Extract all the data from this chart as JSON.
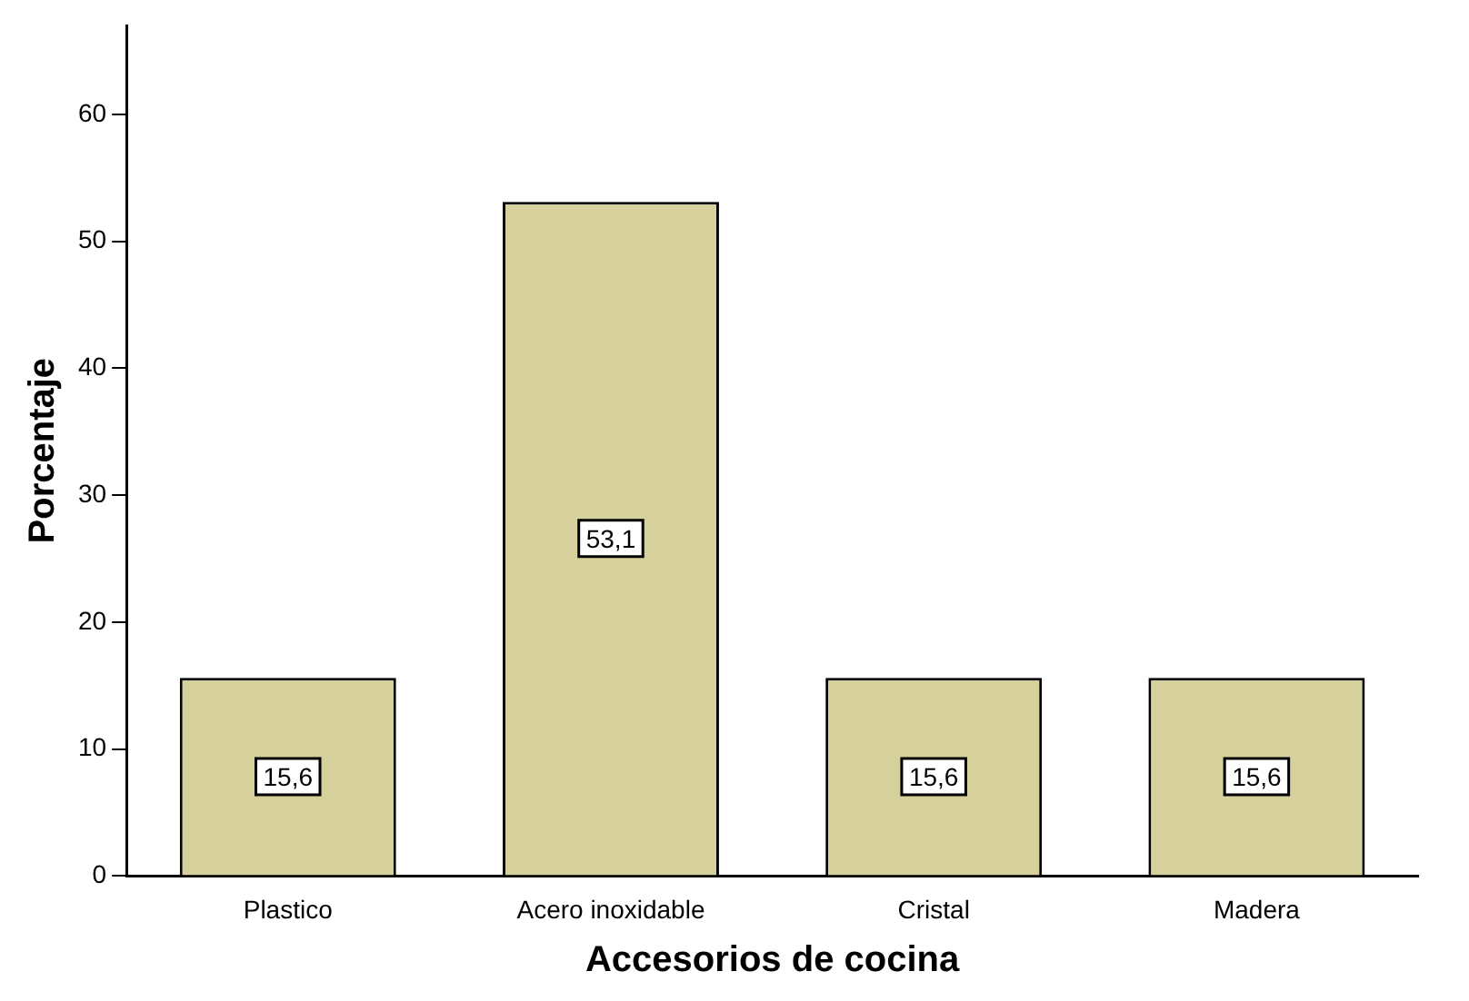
{
  "chart_data": {
    "type": "bar",
    "xlabel": "Accesorios de cocina",
    "ylabel": "Porcentaje",
    "categories": [
      "Plastico",
      "Acero inoxidable",
      "Cristal",
      "Madera"
    ],
    "values": [
      15.6,
      53.1,
      15.6,
      15.6
    ],
    "value_labels": [
      "15,6",
      "53,1",
      "15,6",
      "15,6"
    ],
    "color": "#d5d09c",
    "ylim": [
      0,
      67
    ],
    "yticks": [
      0,
      10,
      20,
      30,
      40,
      50,
      60
    ],
    "grid": false,
    "legend": false
  }
}
